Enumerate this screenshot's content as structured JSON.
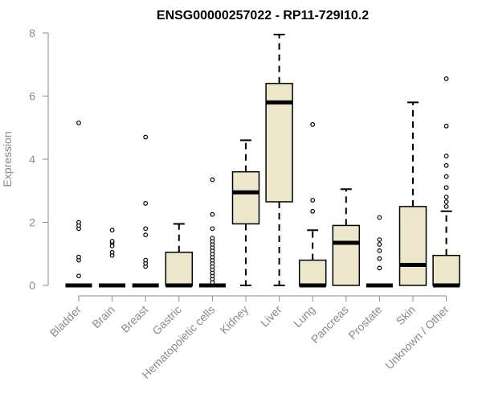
{
  "chart_data": {
    "type": "boxplot",
    "title": "ENSG00000257022 - RP11-729I10.2",
    "xlabel": "",
    "ylabel": "Expression",
    "ylim": [
      0,
      8
    ],
    "yticks": [
      0,
      2,
      4,
      6,
      8
    ],
    "grid": false,
    "legend": "none",
    "colors": {
      "box_fill": "#ede6cb",
      "stroke": "#000000",
      "axis_text": "#8a8a8a"
    },
    "categories": [
      "Bladder",
      "Brain",
      "Breast",
      "Gastric",
      "Hematopoietic cells",
      "Kidney",
      "Liver",
      "Lung",
      "Pancreas",
      "Prostate",
      "Skin",
      "Unknown / Other"
    ],
    "boxes": [
      {
        "category": "Bladder",
        "whisker_low": 0,
        "q1": 0,
        "median": 0,
        "q3": 0,
        "whisker_high": 0,
        "outliers": [
          0.3,
          0.8,
          0.9,
          1.8,
          1.9,
          2.0,
          5.15
        ]
      },
      {
        "category": "Brain",
        "whisker_low": 0,
        "q1": 0,
        "median": 0,
        "q3": 0,
        "whisker_high": 0,
        "outliers": [
          0.95,
          1.05,
          1.25,
          1.35,
          1.4,
          1.75
        ]
      },
      {
        "category": "Breast",
        "whisker_low": 0,
        "q1": 0,
        "median": 0,
        "q3": 0,
        "whisker_high": 0,
        "outliers": [
          0.6,
          0.7,
          0.8,
          1.6,
          1.8,
          2.6,
          4.7
        ]
      },
      {
        "category": "Gastric",
        "whisker_low": 0,
        "q1": 0,
        "median": 0,
        "q3": 1.05,
        "whisker_high": 1.95,
        "outliers": []
      },
      {
        "category": "Hematopoietic cells",
        "whisker_low": 0,
        "q1": 0,
        "median": 0,
        "q3": 0,
        "whisker_high": 0,
        "outliers": [
          0.1,
          0.2,
          0.3,
          0.4,
          0.5,
          0.6,
          0.7,
          0.8,
          0.9,
          1.0,
          1.1,
          1.2,
          1.3,
          1.4,
          1.5,
          1.8,
          2.25,
          3.35
        ]
      },
      {
        "category": "Kidney",
        "whisker_low": 0,
        "q1": 1.95,
        "median": 2.95,
        "q3": 3.6,
        "whisker_high": 4.6,
        "outliers": []
      },
      {
        "category": "Liver",
        "whisker_low": 0,
        "q1": 2.65,
        "median": 5.8,
        "q3": 6.4,
        "whisker_high": 7.95,
        "outliers": []
      },
      {
        "category": "Lung",
        "whisker_low": 0,
        "q1": 0,
        "median": 0,
        "q3": 0.8,
        "whisker_high": 1.75,
        "outliers": [
          2.35,
          2.7,
          5.1
        ]
      },
      {
        "category": "Pancreas",
        "whisker_low": 0,
        "q1": 0,
        "median": 1.35,
        "q3": 1.9,
        "whisker_high": 3.05,
        "outliers": []
      },
      {
        "category": "Prostate",
        "whisker_low": 0,
        "q1": 0,
        "median": 0,
        "q3": 0,
        "whisker_high": 0,
        "outliers": [
          0.55,
          0.85,
          1.1,
          1.3,
          1.45,
          2.15
        ]
      },
      {
        "category": "Skin",
        "whisker_low": 0,
        "q1": 0,
        "median": 0.65,
        "q3": 2.5,
        "whisker_high": 5.8,
        "outliers": []
      },
      {
        "category": "Unknown / Other",
        "whisker_low": 0,
        "q1": 0,
        "median": 0,
        "q3": 0.95,
        "whisker_high": 2.35,
        "outliers": [
          2.5,
          2.65,
          2.8,
          3.1,
          3.45,
          3.8,
          4.1,
          5.05,
          6.55
        ]
      }
    ]
  }
}
